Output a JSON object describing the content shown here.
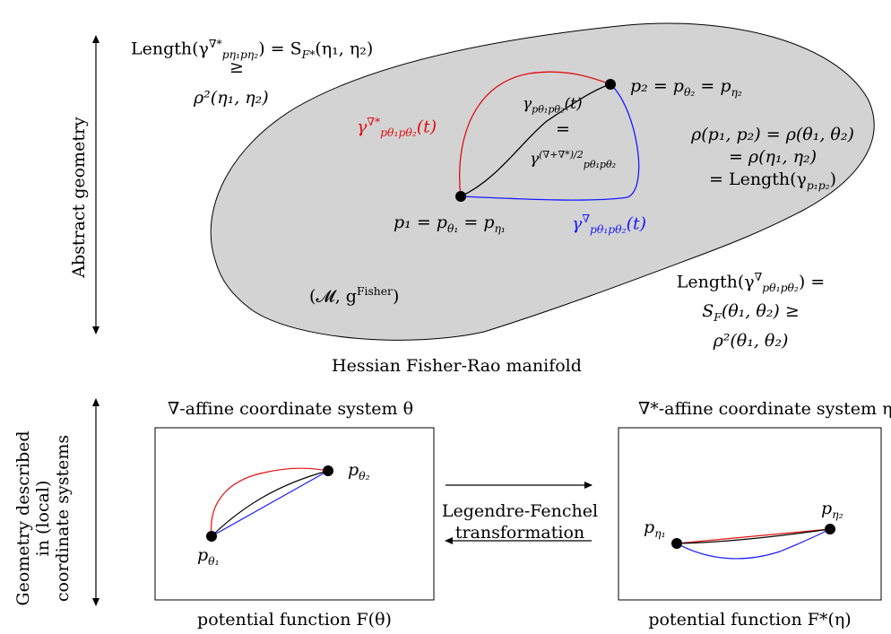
{
  "sections": {
    "abstract_label": "Abstract geometry",
    "coords_label_line1": "Geometry described",
    "coords_label_line2": "in (local)",
    "coords_label_line3": "coordinate systems"
  },
  "manifold": {
    "name": "Hessian Fisher-Rao manifold",
    "tuple": "(𝓜, g",
    "tuple_sup": "Fisher",
    "tuple_end": ")"
  },
  "points": {
    "p1": "p₁ = p",
    "p1_sub1": "θ₁",
    "p1_mid": " = p",
    "p1_sub2": "η₁",
    "p2": "p₂ = p",
    "p2_sub1": "θ₂",
    "p2_mid": " = p",
    "p2_sub2": "η₂"
  },
  "curves": {
    "red_label": "γ",
    "red_sup": "∇*",
    "red_sub": "pθ₁pθ₂",
    "red_arg": "(t)",
    "blue_label": "γ",
    "blue_sup": "∇",
    "blue_sub": "pθ₁pθ₂",
    "blue_arg": "(t)",
    "black_top": "γ",
    "black_top_sub": "pθ₁pθ₂",
    "black_top_arg": "(t)",
    "equals": "=",
    "black_bottom": "γ",
    "black_bottom_sup": "(∇+∇*)/2",
    "black_bottom_sub": "pθ₁pθ₂"
  },
  "equations": {
    "top_left_1": "Length(γ",
    "top_left_1_sup": "∇*",
    "top_left_1_sub": "pη₁pη₂",
    "top_left_1_end": ") = S",
    "top_left_1_F": "F*",
    "top_left_1_tail": "(η₁, η₂)",
    "top_left_2": "≥",
    "top_left_3": "ρ²(η₁, η₂)",
    "right_1": "ρ(p₁, p₂) = ρ(θ₁, θ₂)",
    "right_2": "= ρ(η₁, η₂)",
    "right_3": "= Length(γ",
    "right_3_sub": "p₁p₂",
    "right_3_end": ")",
    "bottom_right_1": "Length(γ",
    "bottom_right_1_sup": "∇",
    "bottom_right_1_sub": "pθ₁pθ₂",
    "bottom_right_1_end": ") =",
    "bottom_right_2": "S",
    "bottom_right_2_sub": "F",
    "bottom_right_2_end": "(θ₁, θ₂) ≥",
    "bottom_right_3": "ρ²(θ₁, θ₂)"
  },
  "coord_systems": {
    "left_title": "∇-affine coordinate system θ",
    "right_title": "∇*-affine coordinate system η",
    "left_caption": "potential function F(θ)",
    "right_caption": "potential function F*(η)",
    "left_p1": "p",
    "left_p1_sub": "θ₁",
    "left_p2": "p",
    "left_p2_sub": "θ₂",
    "right_p1": "p",
    "right_p1_sub": "η₁",
    "right_p2": "p",
    "right_p2_sub": "η₂"
  },
  "transform": {
    "line1": "Legendre-Fenchel",
    "line2": "transformation"
  },
  "colors": {
    "manifold_fill": "#d3d3d3",
    "red": "#e01010",
    "blue": "#1a1aff",
    "black": "#000000"
  }
}
